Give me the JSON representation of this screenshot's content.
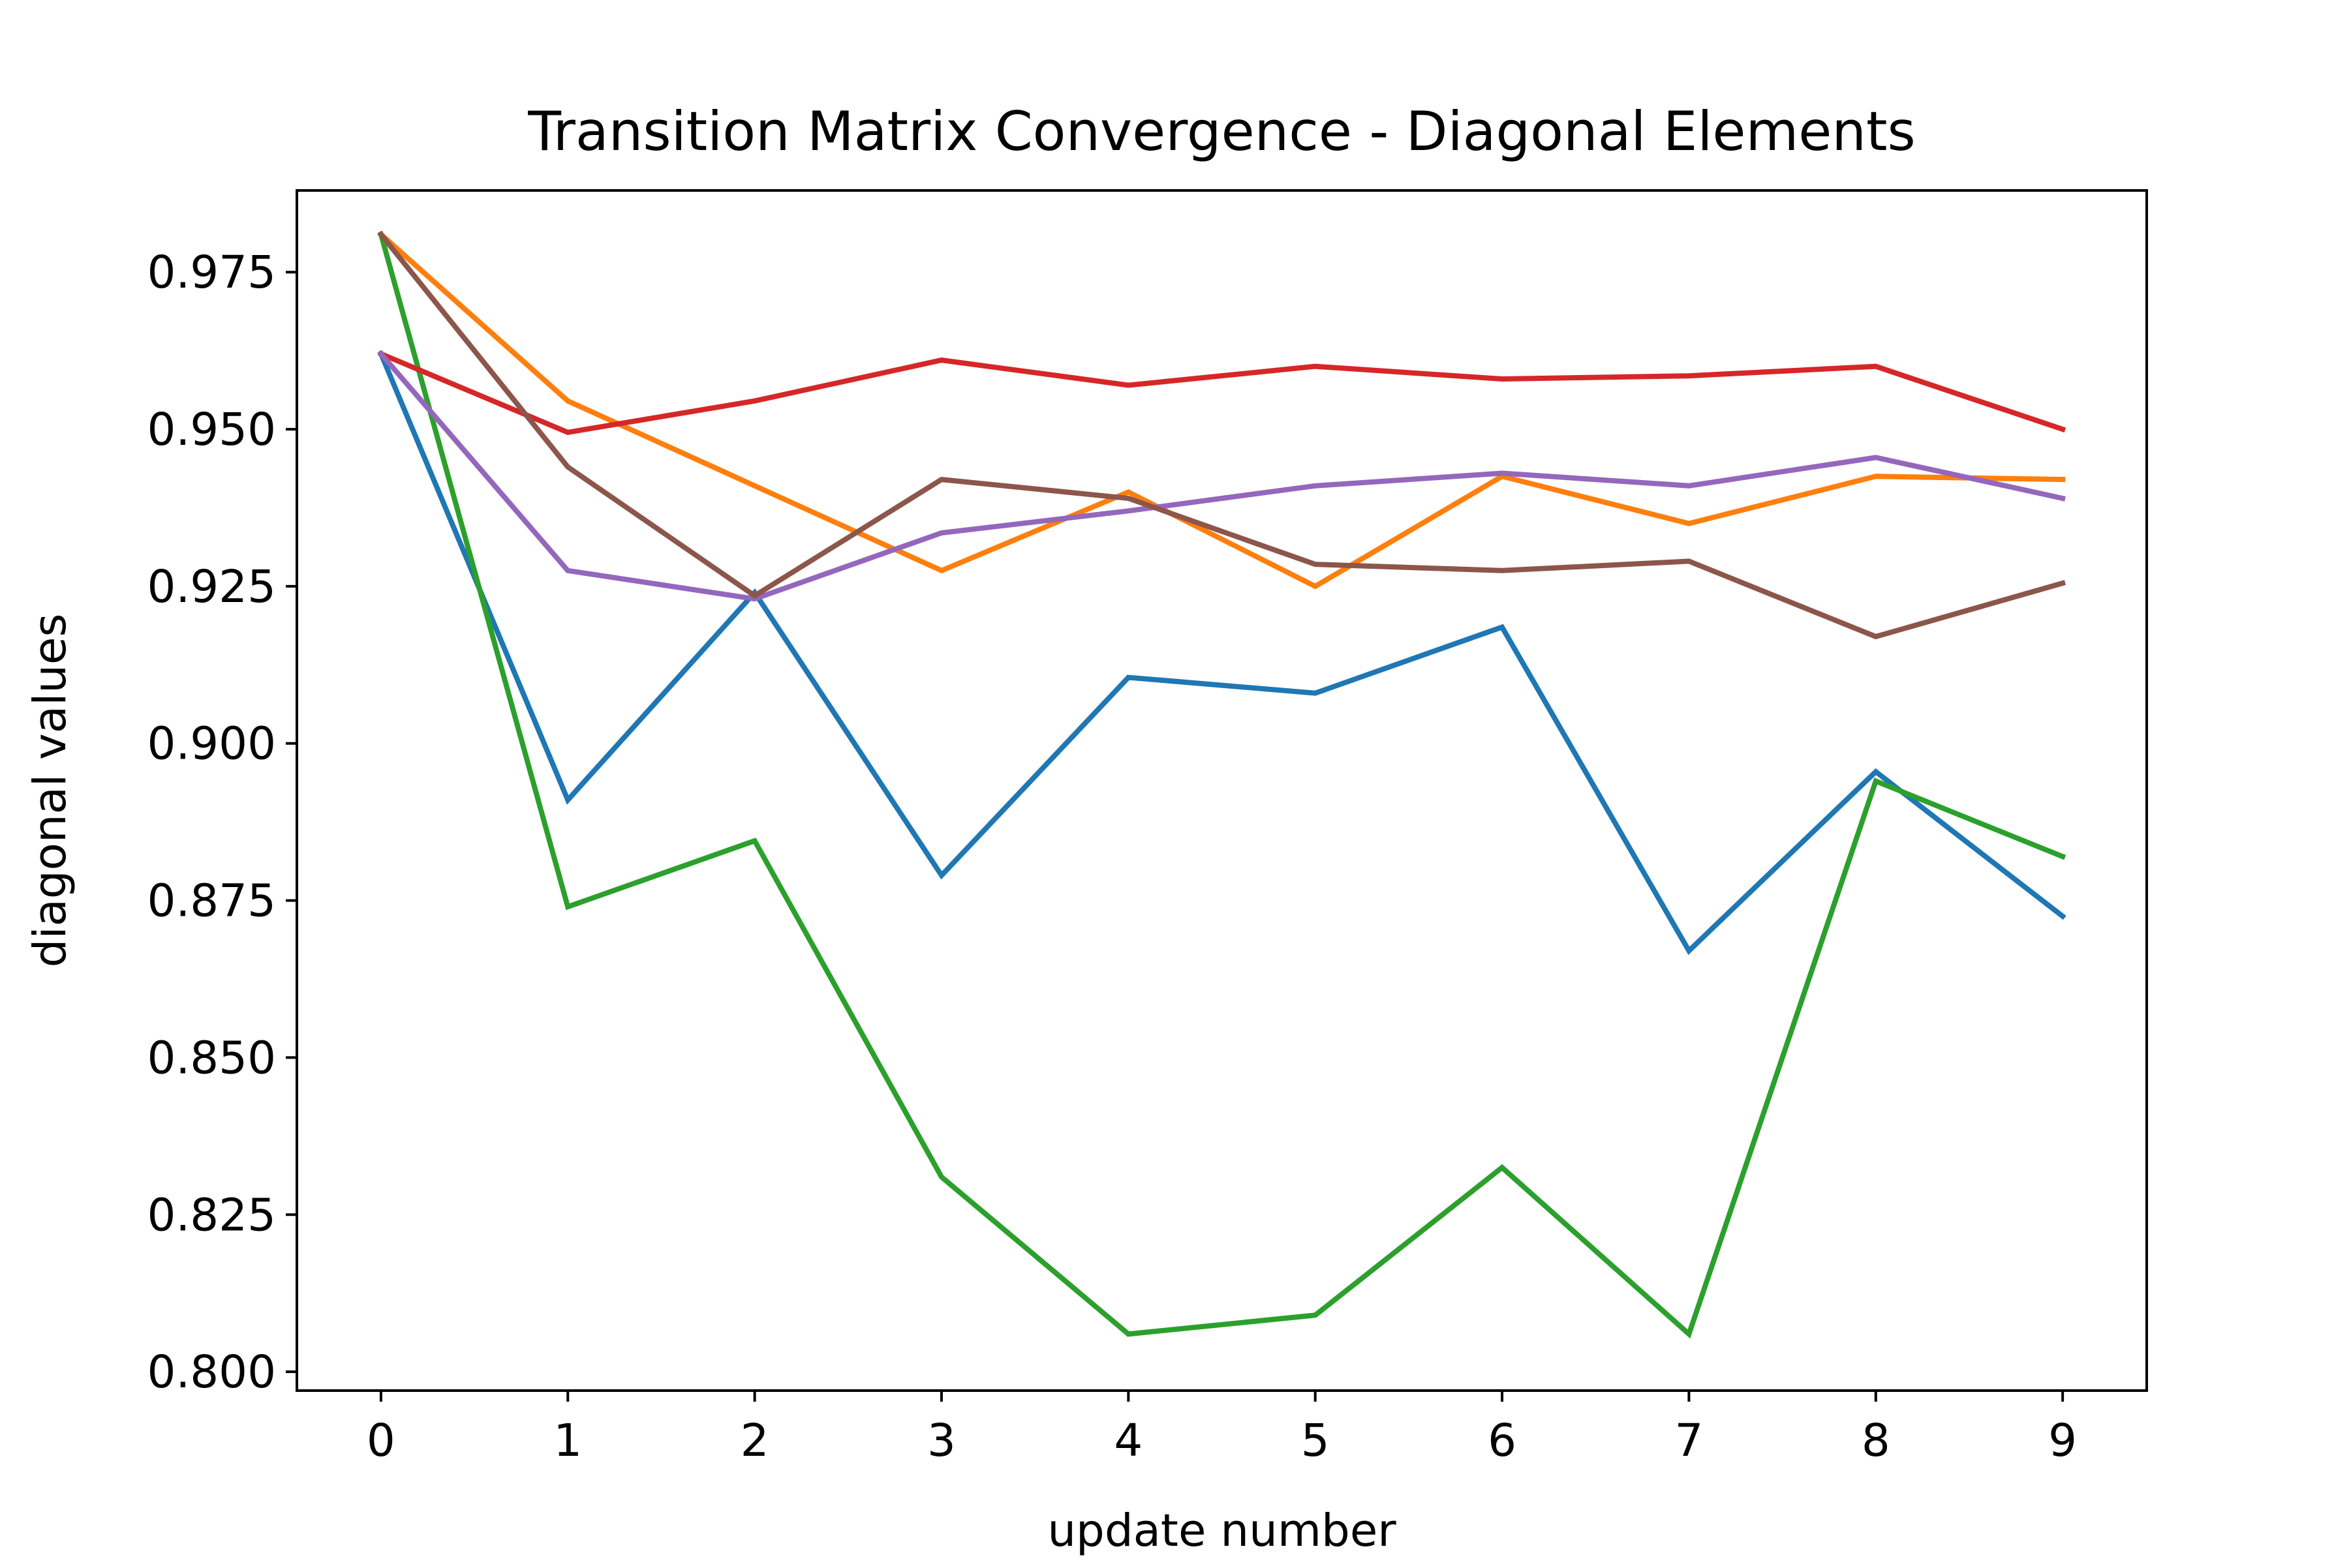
{
  "chart_data": {
    "type": "line",
    "title": "Transition Matrix Convergence - Diagonal Elements",
    "xlabel": "update number",
    "ylabel": "diagonal values",
    "x": [
      0,
      1,
      2,
      3,
      4,
      5,
      6,
      7,
      8,
      9
    ],
    "xticks": [
      "0",
      "1",
      "2",
      "3",
      "4",
      "5",
      "6",
      "7",
      "8",
      "9"
    ],
    "yticks": [
      "0.800",
      "0.825",
      "0.850",
      "0.875",
      "0.900",
      "0.925",
      "0.950",
      "0.975"
    ],
    "xlim": [
      -0.45,
      9.45
    ],
    "ylim": [
      0.797,
      0.988
    ],
    "grid": false,
    "legend": "none",
    "series": [
      {
        "color": "#1f77b4",
        "values": [
          0.962,
          0.891,
          0.924,
          0.879,
          0.9105,
          0.908,
          0.9185,
          0.867,
          0.8955,
          0.8725
        ]
      },
      {
        "color": "#ff7f0e",
        "values": [
          0.981,
          0.9545,
          0.941,
          0.9275,
          0.94,
          0.925,
          0.9425,
          0.935,
          0.9425,
          0.942
        ]
      },
      {
        "color": "#2ca02c",
        "values": [
          0.981,
          0.874,
          0.8845,
          0.831,
          0.806,
          0.809,
          0.8325,
          0.806,
          0.894,
          0.882
        ]
      },
      {
        "color": "#d62728",
        "values": [
          0.962,
          0.9495,
          0.9545,
          0.961,
          0.957,
          0.96,
          0.958,
          0.9585,
          0.96,
          0.95
        ]
      },
      {
        "color": "#9467bd",
        "values": [
          0.962,
          0.9275,
          0.923,
          0.9335,
          0.937,
          0.941,
          0.943,
          0.941,
          0.9455,
          0.939
        ]
      },
      {
        "color": "#8c564b",
        "values": [
          0.981,
          0.944,
          0.9235,
          0.942,
          0.939,
          0.9285,
          0.9275,
          0.929,
          0.917,
          0.9255
        ]
      }
    ]
  }
}
